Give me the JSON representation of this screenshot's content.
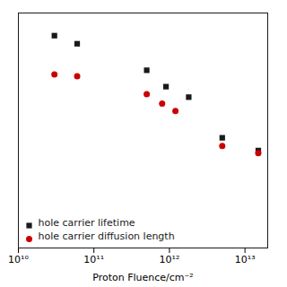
{
  "chart_data": {
    "type": "scatter",
    "xlabel": "Proton Fluence/cm⁻²",
    "log": true,
    "xlim": [
      10000000000.0,
      20000000000000.0
    ],
    "xticks": [
      {
        "value": 10000000000.0,
        "label": "10¹⁰"
      },
      {
        "value": 100000000000.0,
        "label": "10¹¹"
      },
      {
        "value": 1000000000000.0,
        "label": "10¹²"
      },
      {
        "value": 10000000000000.0,
        "label": "10¹³"
      }
    ],
    "ylim": [
      0.01,
      2
    ],
    "tick_labels": "x",
    "grid": false,
    "legend": "lower left",
    "series": [
      {
        "name": "hole carrier lifetime",
        "color": "#1a1a1a",
        "marker": "square",
        "x": [
          30000000000.0,
          60000000000.0,
          500000000000.0,
          900000000000.0,
          1800000000000.0,
          5000000000000.0,
          15000000000000.0
        ],
        "values": [
          1.2,
          1.0,
          0.55,
          0.38,
          0.3,
          0.12,
          0.09
        ]
      },
      {
        "name": "hole carrier diffusion length",
        "color": "#cc0000",
        "marker": "circle",
        "x": [
          30000000000.0,
          60000000000.0,
          500000000000.0,
          800000000000.0,
          1200000000000.0,
          5000000000000.0,
          15000000000000.0
        ],
        "values": [
          0.5,
          0.48,
          0.32,
          0.26,
          0.22,
          0.1,
          0.085
        ]
      }
    ]
  }
}
